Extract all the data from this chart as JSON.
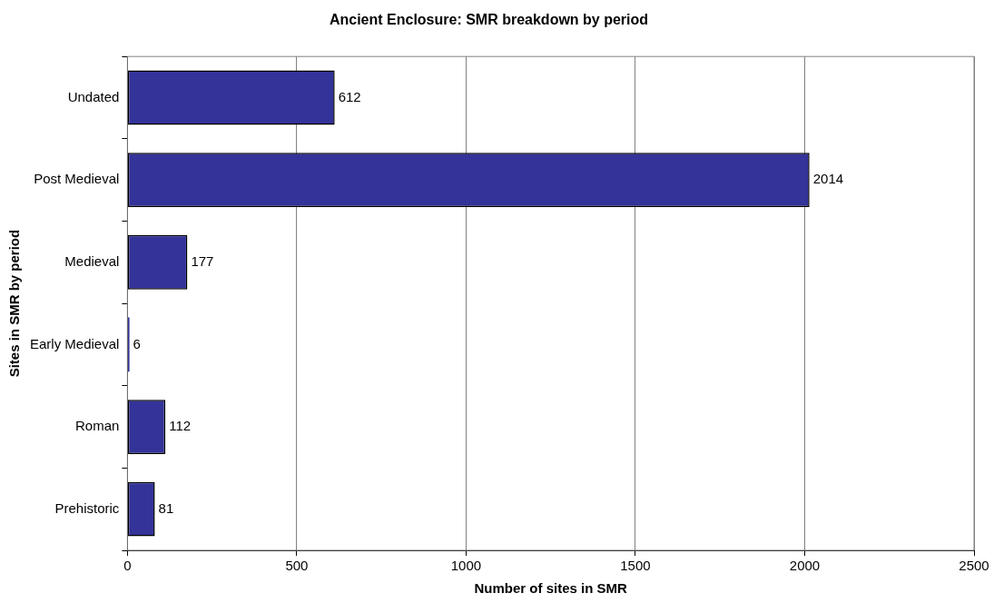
{
  "chart_data": {
    "type": "bar",
    "orientation": "horizontal",
    "title": "Ancient Enclosure: SMR breakdown by period",
    "xlabel": "Number of sites in SMR",
    "ylabel": "Sites in SMR by period",
    "categories": [
      "Undated",
      "Post Medieval",
      "Medieval",
      "Early Medieval",
      "Roman",
      "Prehistoric"
    ],
    "values": [
      612,
      2014,
      177,
      6,
      112,
      81
    ],
    "color": "#333399",
    "xlim": [
      0,
      2500
    ],
    "xticks": [
      0,
      500,
      1000,
      1500,
      2000,
      2500
    ],
    "grid": "x",
    "data_labels": true,
    "legend": false
  }
}
